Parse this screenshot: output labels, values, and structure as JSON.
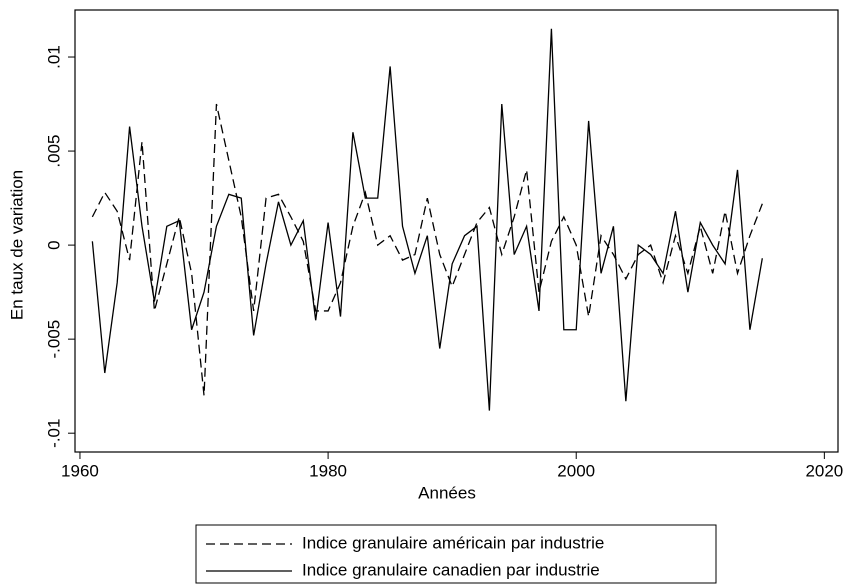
{
  "chart_data": {
    "type": "line",
    "xlabel": "Années",
    "ylabel": "En taux de variation",
    "x": [
      1961,
      1962,
      1963,
      1964,
      1965,
      1966,
      1967,
      1968,
      1969,
      1970,
      1971,
      1972,
      1973,
      1974,
      1975,
      1976,
      1977,
      1978,
      1979,
      1980,
      1981,
      1982,
      1983,
      1984,
      1985,
      1986,
      1987,
      1988,
      1989,
      1990,
      1991,
      1992,
      1993,
      1994,
      1995,
      1996,
      1997,
      1998,
      1999,
      2000,
      2001,
      2002,
      2003,
      2004,
      2005,
      2006,
      2007,
      2008,
      2009,
      2010,
      2011,
      2012,
      2013,
      2014,
      2015
    ],
    "series": [
      {
        "name": "Indice granulaire américain par industrie",
        "color": "#000000",
        "style": "dashed",
        "values": [
          0.0015,
          0.0028,
          0.0018,
          -0.0008,
          0.0055,
          -0.0035,
          -0.001,
          0.0015,
          -0.0015,
          -0.008,
          0.0075,
          0.0045,
          0.0015,
          -0.0035,
          0.0025,
          0.0027,
          0.0015,
          0.0002,
          -0.0035,
          -0.0035,
          -0.002,
          0.001,
          0.0028,
          0,
          0.0005,
          -0.0008,
          -0.0005,
          0.0025,
          -0.0005,
          -0.0022,
          -0.0005,
          0.0012,
          0.002,
          -0.0005,
          0.0015,
          0.004,
          -0.0025,
          0.0002,
          0.0015,
          0,
          -0.0038,
          0.0005,
          -0.0005,
          -0.0018,
          -0.0005,
          0,
          -0.002,
          0.0005,
          -0.0015,
          0.001,
          -0.0015,
          0.0018,
          -0.0015,
          0.0005,
          0.0022
        ]
      },
      {
        "name": "Indice granulaire canadien par industrie",
        "color": "#000000",
        "style": "solid",
        "values": [
          0.0002,
          -0.0068,
          -0.002,
          0.0063,
          0.001,
          -0.003,
          0.001,
          0.0013,
          -0.0045,
          -0.0025,
          0.001,
          0.0027,
          0.0025,
          -0.0048,
          -0.001,
          0.0023,
          0,
          0.0013,
          -0.004,
          0.0012,
          -0.0038,
          0.006,
          0.0025,
          0.0025,
          0.0095,
          0.001,
          -0.0015,
          0.0005,
          -0.0055,
          -0.001,
          0.0005,
          0.001,
          -0.0088,
          0.0075,
          -0.0005,
          0.001,
          -0.0035,
          0.0115,
          -0.0045,
          -0.0045,
          0.0066,
          -0.0015,
          0.001,
          -0.0083,
          0,
          -0.0005,
          -0.0015,
          0.0018,
          -0.0025,
          0.0012,
          0,
          -0.001,
          0.004,
          -0.0045,
          -0.0007
        ]
      }
    ],
    "xlim": [
      1959.6,
      2021.1
    ],
    "xticks": [
      1960,
      1980,
      2000,
      2020
    ],
    "ylim": [
      -0.011,
      0.0125
    ],
    "yticks": [
      {
        "value": -0.01,
        "label": "-.01"
      },
      {
        "value": -0.005,
        "label": "-.005"
      },
      {
        "value": 0,
        "label": "0"
      },
      {
        "value": 0.005,
        "label": ".005"
      },
      {
        "value": 0.01,
        "label": ".01"
      }
    ],
    "grid": false,
    "legend": "bottom"
  }
}
